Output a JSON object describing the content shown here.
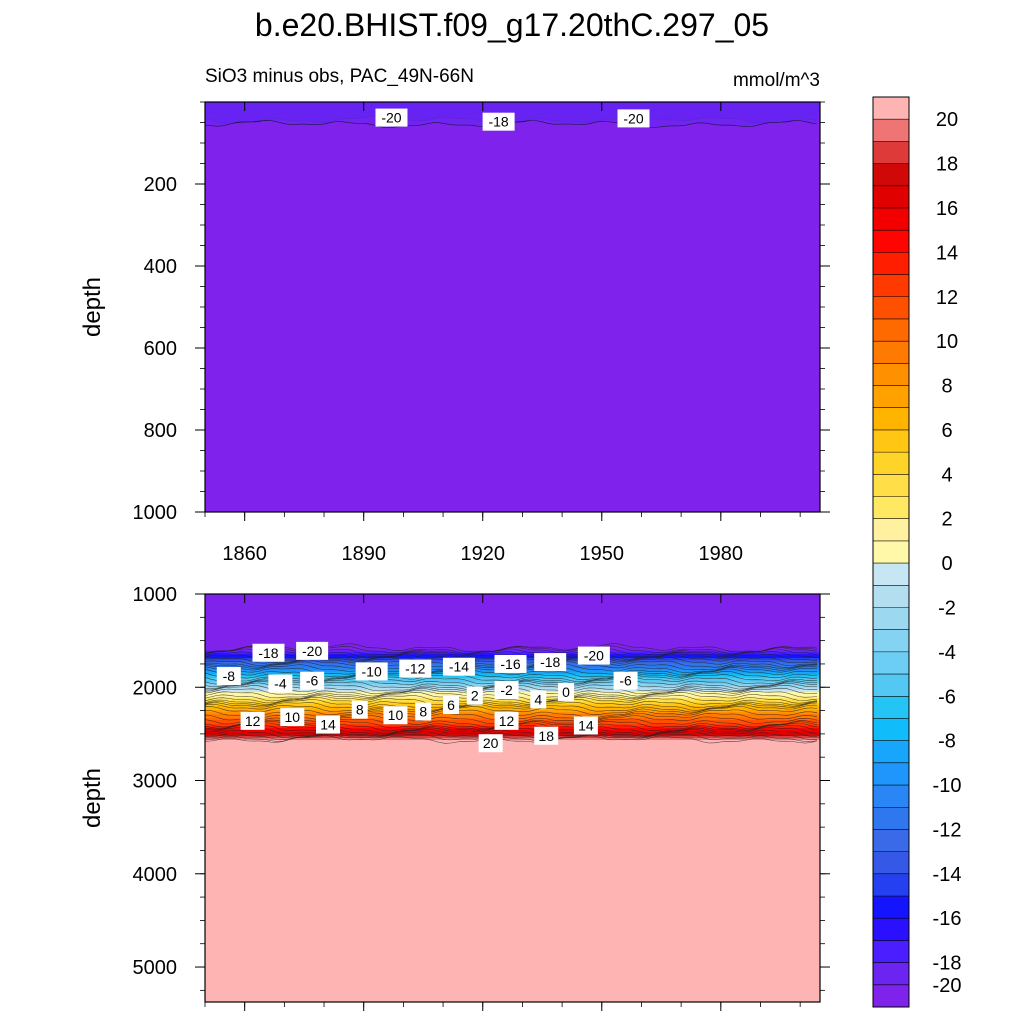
{
  "chart_data": {
    "type": "heatmap",
    "title": "b.e20.BHIST.f09_g17.20thC.297_05",
    "subtitle_left": "SiO3 minus obs, PAC_49N-66N",
    "subtitle_right": "mmol/m^3",
    "colorbar": {
      "levels": [
        -20,
        -19,
        -18,
        -17,
        -16,
        -15,
        -14,
        -13,
        -12,
        -11,
        -10,
        -9,
        -8,
        -7,
        -6,
        -5,
        -4,
        -3,
        -2,
        -1,
        0,
        1,
        2,
        3,
        4,
        5,
        6,
        7,
        8,
        9,
        10,
        11,
        12,
        13,
        14,
        15,
        16,
        17,
        18,
        19,
        20
      ],
      "labels": [
        "20",
        "18",
        "16",
        "14",
        "12",
        "10",
        "8",
        "6",
        "4",
        "2",
        "0",
        "-2",
        "-4",
        "-6",
        "-8",
        "-10",
        "-12",
        "-14",
        "-16",
        "-18",
        "-20"
      ],
      "colors": [
        "#7f22ec",
        "#6c24f0",
        "#4a1eff",
        "#2a10ff",
        "#1414ff",
        "#2440f0",
        "#3658e6",
        "#3b6ae8",
        "#2f77ee",
        "#2a86f5",
        "#1f96fb",
        "#17a6fb",
        "#10bcf9",
        "#24c4f5",
        "#52c8f2",
        "#6ccef4",
        "#84d3f2",
        "#9cd8f0",
        "#b2def0",
        "#c6e6f4",
        "#fff8a8",
        "#fff1a0",
        "#ffe862",
        "#ffde48",
        "#ffd428",
        "#ffc614",
        "#ffb400",
        "#ffa200",
        "#ff9000",
        "#ff7a00",
        "#ff6a00",
        "#ff5000",
        "#ff3a00",
        "#ff1e00",
        "#ff0400",
        "#f20000",
        "#e00000",
        "#d00808",
        "#df3a3a",
        "#ef7474",
        "#ffb4b4"
      ]
    },
    "panels": [
      {
        "name": "upper",
        "ylabel": "depth",
        "x_range": [
          1850,
          2005
        ],
        "y_range": [
          0,
          1000
        ],
        "x_ticks": [
          1860,
          1890,
          1920,
          1950,
          1980
        ],
        "y_ticks": [
          200,
          400,
          600,
          800,
          1000
        ],
        "background_value": -20,
        "contour_labels": [
          {
            "text": "-20",
            "year": 1897,
            "depth": 38
          },
          {
            "text": "-18",
            "year": 1924,
            "depth": 48
          },
          {
            "text": "-20",
            "year": 1958,
            "depth": 40
          }
        ]
      },
      {
        "name": "lower",
        "ylabel": "depth",
        "x_range": [
          1850,
          2005
        ],
        "y_range": [
          1000,
          5375
        ],
        "x_ticks": [
          1860,
          1890,
          1920,
          1950,
          1980
        ],
        "y_ticks": [
          1000,
          2000,
          3000,
          4000,
          5000
        ],
        "profile": [
          {
            "depth": 1000,
            "value": -20
          },
          {
            "depth": 1580,
            "value": -20
          },
          {
            "depth": 1615,
            "value": -18
          },
          {
            "depth": 1700,
            "value": -14
          },
          {
            "depth": 1800,
            "value": -10
          },
          {
            "depth": 1900,
            "value": -6
          },
          {
            "depth": 2000,
            "value": -2
          },
          {
            "depth": 2050,
            "value": 0
          },
          {
            "depth": 2150,
            "value": 4
          },
          {
            "depth": 2250,
            "value": 8
          },
          {
            "depth": 2380,
            "value": 12
          },
          {
            "depth": 2470,
            "value": 16
          },
          {
            "depth": 2560,
            "value": 20
          },
          {
            "depth": 5375,
            "value": 20
          }
        ],
        "contour_labels": [
          {
            "text": "-18",
            "year": 1866,
            "depth": 1630
          },
          {
            "text": "-20",
            "year": 1877,
            "depth": 1610
          },
          {
            "text": "-8",
            "year": 1856,
            "depth": 1880
          },
          {
            "text": "-4",
            "year": 1869,
            "depth": 1960
          },
          {
            "text": "-6",
            "year": 1877,
            "depth": 1930
          },
          {
            "text": "-10",
            "year": 1892,
            "depth": 1830
          },
          {
            "text": "-12",
            "year": 1903,
            "depth": 1800
          },
          {
            "text": "-14",
            "year": 1914,
            "depth": 1780
          },
          {
            "text": "-16",
            "year": 1927,
            "depth": 1750
          },
          {
            "text": "-18",
            "year": 1937,
            "depth": 1730
          },
          {
            "text": "-20",
            "year": 1948,
            "depth": 1660
          },
          {
            "text": "-6",
            "year": 1956,
            "depth": 1930
          },
          {
            "text": "2",
            "year": 1918,
            "depth": 2090
          },
          {
            "text": "-2",
            "year": 1926,
            "depth": 2030
          },
          {
            "text": "4",
            "year": 1934,
            "depth": 2130
          },
          {
            "text": "0",
            "year": 1941,
            "depth": 2050
          },
          {
            "text": "12",
            "year": 1862,
            "depth": 2360
          },
          {
            "text": "10",
            "year": 1872,
            "depth": 2320
          },
          {
            "text": "14",
            "year": 1881,
            "depth": 2400
          },
          {
            "text": "8",
            "year": 1889,
            "depth": 2240
          },
          {
            "text": "10",
            "year": 1898,
            "depth": 2300
          },
          {
            "text": "8",
            "year": 1905,
            "depth": 2260
          },
          {
            "text": "6",
            "year": 1912,
            "depth": 2190
          },
          {
            "text": "12",
            "year": 1926,
            "depth": 2360
          },
          {
            "text": "20",
            "year": 1922,
            "depth": 2600
          },
          {
            "text": "18",
            "year": 1936,
            "depth": 2520
          },
          {
            "text": "14",
            "year": 1946,
            "depth": 2410
          }
        ]
      }
    ]
  }
}
